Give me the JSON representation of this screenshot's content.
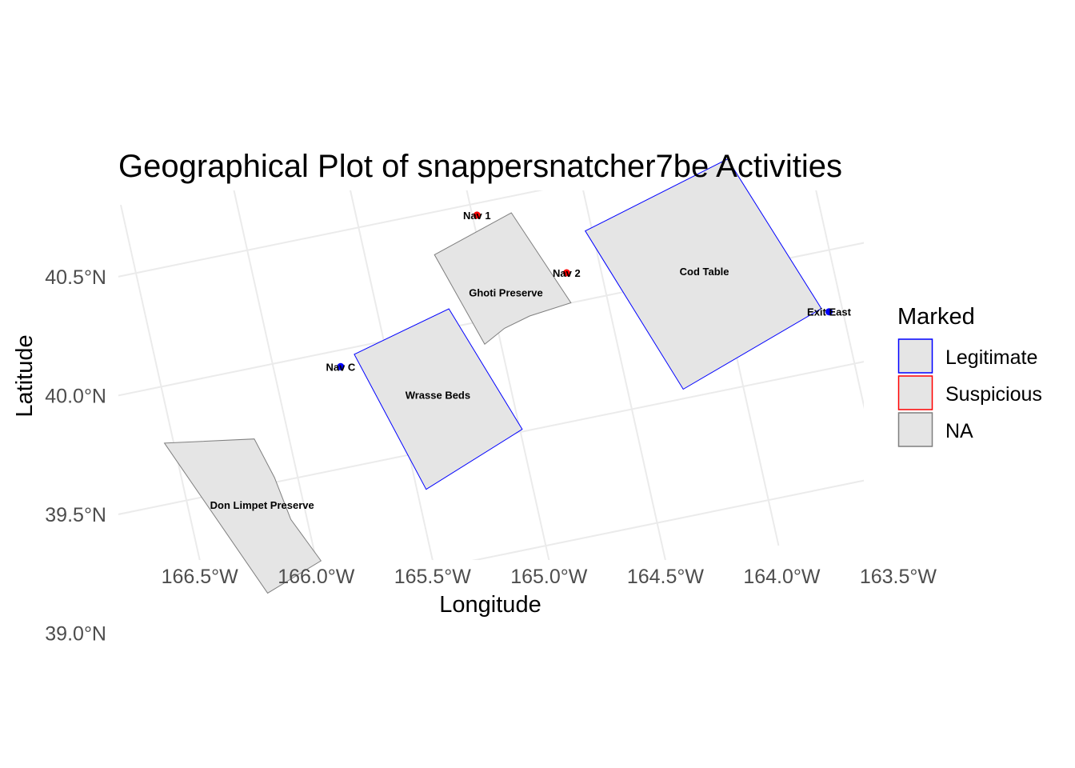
{
  "chart_data": {
    "type": "map",
    "title": "Geographical Plot of snappersnatcher7be Activities",
    "xlabel": "Longitude",
    "ylabel": "Latitude",
    "x_ticks": [
      {
        "value": -166.5,
        "label": "166.5°W"
      },
      {
        "value": -166.0,
        "label": "166.0°W"
      },
      {
        "value": -165.5,
        "label": "165.5°W"
      },
      {
        "value": -165.0,
        "label": "165.0°W"
      },
      {
        "value": -164.5,
        "label": "164.5°W"
      },
      {
        "value": -164.0,
        "label": "164.0°W"
      },
      {
        "value": -163.5,
        "label": "163.5°W"
      }
    ],
    "y_ticks": [
      {
        "value": 39.0,
        "label": "39.0°N"
      },
      {
        "value": 39.5,
        "label": "39.5°N"
      },
      {
        "value": 40.0,
        "label": "40.0°N"
      },
      {
        "value": 40.5,
        "label": "40.5°N"
      }
    ],
    "legend": {
      "title": "Marked",
      "position": "right",
      "entries": [
        {
          "label": "Legitimate",
          "color": "#0000ff"
        },
        {
          "label": "Suspicious",
          "color": "#ff0000"
        },
        {
          "label": "NA",
          "color": "#7f7f7f"
        }
      ]
    },
    "colors": {
      "legitimate": "#0000ff",
      "suspicious": "#ff0000",
      "na": "#7f7f7f",
      "fill": "#e5e5e5",
      "grid": "#ebebeb"
    },
    "regions": [
      {
        "name": "Don Limpet Preserve",
        "marked": "NA",
        "coords": [
          [
            -166.54,
            39.76
          ],
          [
            -166.15,
            39.7
          ],
          [
            -166.1,
            39.52
          ],
          [
            -166.07,
            39.33
          ],
          [
            -165.98,
            39.13
          ],
          [
            -166.24,
            39.04
          ]
        ]
      },
      {
        "name": "Wrasse Beds",
        "marked": "Legitimate",
        "coords": [
          [
            -165.64,
            39.97
          ],
          [
            -165.19,
            40.08
          ],
          [
            -164.99,
            39.51
          ],
          [
            -165.46,
            39.34
          ]
        ]
      },
      {
        "name": "Ghoti Preserve",
        "marked": "NA",
        "coords": [
          [
            -165.2,
            40.32
          ],
          [
            -164.83,
            40.43
          ],
          [
            -164.66,
            40.0
          ],
          [
            -164.85,
            39.98
          ],
          [
            -164.97,
            39.95
          ],
          [
            -165.07,
            39.9
          ]
        ]
      },
      {
        "name": "Cod Table",
        "marked": "Legitimate",
        "coords": [
          [
            -164.53,
            40.29
          ],
          [
            -163.85,
            40.47
          ],
          [
            -163.59,
            39.76
          ],
          [
            -164.26,
            39.54
          ]
        ]
      }
    ],
    "points": [
      {
        "name": "Nav 1",
        "lon": -164.98,
        "lat": 40.45,
        "marked": "Suspicious"
      },
      {
        "name": "Nav 2",
        "lon": -164.65,
        "lat": 40.13,
        "marked": "Suspicious"
      },
      {
        "name": "Nav C",
        "lon": -165.71,
        "lat": 39.93,
        "marked": "Legitimate"
      },
      {
        "name": "Exit East",
        "lon": -163.56,
        "lat": 39.74,
        "marked": "Legitimate"
      }
    ]
  }
}
